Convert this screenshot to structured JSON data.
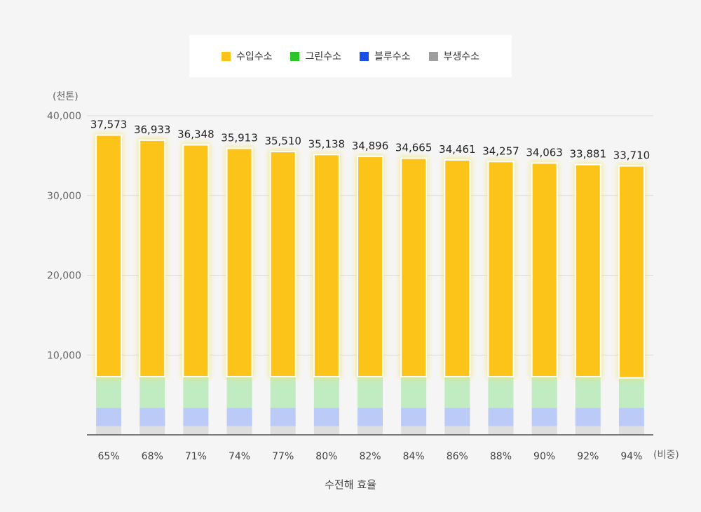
{
  "legend": [
    {
      "label": "수입수소",
      "color": "#fcc419"
    },
    {
      "label": "그린수소",
      "color": "#2bc42b"
    },
    {
      "label": "블루수소",
      "color": "#1c4fe8"
    },
    {
      "label": "부생수소",
      "color": "#9e9e9e"
    }
  ],
  "chart_data": {
    "type": "bar",
    "stacked": true,
    "ylabel": "(천톤)",
    "xlabel": "수전해 효율",
    "x_unit_label": "(비중)",
    "ylim": [
      0,
      40000
    ],
    "yticks": [
      "10,000",
      "20,000",
      "30,000",
      "40,000"
    ],
    "ytick_values": [
      10000,
      20000,
      30000,
      40000
    ],
    "grid": true,
    "legend_position": "top",
    "categories": [
      "65%",
      "68%",
      "71%",
      "74%",
      "77%",
      "80%",
      "82%",
      "84%",
      "86%",
      "88%",
      "90%",
      "92%",
      "94%"
    ],
    "totals": [
      37573,
      36933,
      36348,
      35913,
      35510,
      35138,
      34896,
      34665,
      34461,
      34257,
      34063,
      33881,
      33710
    ],
    "total_labels": [
      "37,573",
      "36,933",
      "36,348",
      "35,913",
      "35,510",
      "35,138",
      "34,896",
      "34,665",
      "34,461",
      "34,257",
      "34,063",
      "33,881",
      "33,710"
    ],
    "series": [
      {
        "name": "부생수소",
        "color": "#dedede",
        "values": [
          1100,
          1100,
          1100,
          1100,
          1100,
          1100,
          1100,
          1100,
          1100,
          1100,
          1100,
          1100,
          1100
        ]
      },
      {
        "name": "블루수소",
        "color": "#bccaf8",
        "values": [
          2300,
          2300,
          2300,
          2300,
          2300,
          2300,
          2300,
          2300,
          2300,
          2300,
          2300,
          2300,
          2300
        ]
      },
      {
        "name": "그린수소",
        "color": "#c1ebc1",
        "values": [
          3900,
          3900,
          3900,
          3900,
          3900,
          3900,
          3900,
          3900,
          3900,
          3900,
          3900,
          3900,
          3750
        ]
      },
      {
        "name": "수입수소",
        "color": "#fcc419",
        "values": [
          30273,
          29633,
          29048,
          28613,
          28210,
          27838,
          27596,
          27365,
          27161,
          26957,
          26763,
          26581,
          26560
        ]
      }
    ]
  }
}
